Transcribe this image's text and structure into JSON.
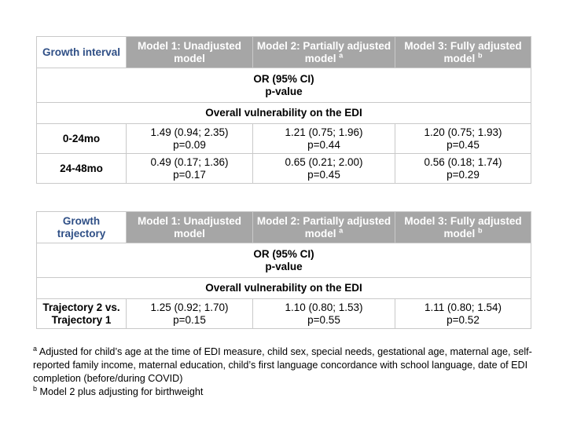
{
  "table1": {
    "corner": "Growth interval",
    "headers": [
      {
        "text": "Model 1: Unadjusted model",
        "sup": ""
      },
      {
        "text": "Model 2: Partially adjusted model",
        "sup": "a"
      },
      {
        "text": "Model 3: Fully adjusted model",
        "sup": "b"
      }
    ],
    "measure_line1": "OR (95% CI)",
    "measure_line2": "p-value",
    "section": "Overall vulnerability on the EDI",
    "rows": [
      {
        "label": "0-24mo",
        "cells": [
          {
            "or": "1.49 (0.94; 2.35)",
            "p": "p=0.09"
          },
          {
            "or": "1.21 (0.75; 1.96)",
            "p": "p=0.44"
          },
          {
            "or": "1.20 (0.75; 1.93)",
            "p": "p=0.45"
          }
        ]
      },
      {
        "label": "24-48mo",
        "cells": [
          {
            "or": "0.49 (0.17; 1.36)",
            "p": "p=0.17"
          },
          {
            "or": "0.65 (0.21; 2.00)",
            "p": "p=0.45"
          },
          {
            "or": "0.56 (0.18; 1.74)",
            "p": "p=0.29"
          }
        ]
      }
    ]
  },
  "table2": {
    "corner": "Growth trajectory",
    "headers": [
      {
        "text": "Model 1: Unadjusted model",
        "sup": ""
      },
      {
        "text": "Model 2: Partially adjusted model",
        "sup": "a"
      },
      {
        "text": "Model 3: Fully adjusted model",
        "sup": "b"
      }
    ],
    "measure_line1": "OR (95% CI)",
    "measure_line2": "p-value",
    "section": "Overall vulnerability on the EDI",
    "rows": [
      {
        "label": "Trajectory 2 vs. Trajectory 1",
        "cells": [
          {
            "or": "1.25 (0.92; 1.70)",
            "p": "p=0.15"
          },
          {
            "or": "1.10 (0.80; 1.53)",
            "p": "p=0.55"
          },
          {
            "or": "1.11 (0.80; 1.54)",
            "p": "p=0.52"
          }
        ]
      }
    ]
  },
  "footnotes": [
    {
      "mark": "a",
      "text": " Adjusted for child’s age at the time of EDI measure, child sex, special needs, gestational age, maternal age, self-reported family income, maternal education, child’s first language concordance with school language, date of EDI completion (before/during COVID)"
    },
    {
      "mark": "b",
      "text": " Model 2 plus adjusting for birthweight"
    }
  ]
}
